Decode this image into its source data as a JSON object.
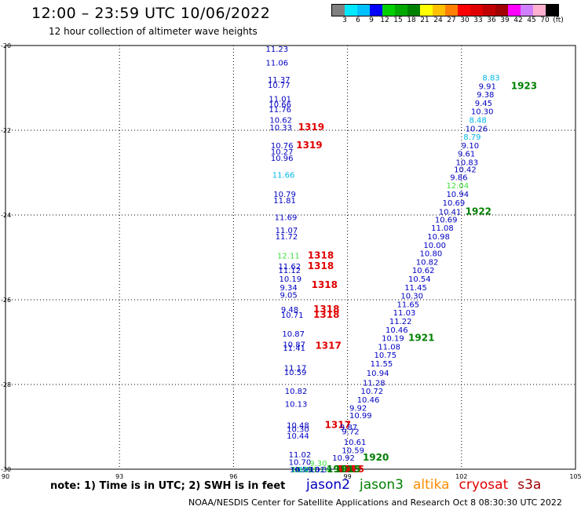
{
  "header": {
    "title": "12:00 – 23:59 UTC 10/06/2022",
    "subtitle": "12 hour collection of altimeter wave heights"
  },
  "colorbar": {
    "colors": [
      "#808080",
      "#00e8ff",
      "#00c0ff",
      "#0000ff",
      "#00d000",
      "#00a800",
      "#008000",
      "#ffff00",
      "#ffc000",
      "#ff8000",
      "#ff0000",
      "#e00000",
      "#c00000",
      "#a00000",
      "#ff00ff",
      "#d080ff",
      "#ffb0d0",
      "#000000"
    ],
    "labels": [
      "3",
      "6",
      "9",
      "12",
      "15",
      "18",
      "21",
      "24",
      "27",
      "30",
      "33",
      "36",
      "39",
      "42",
      "45",
      "70",
      "(ft)"
    ]
  },
  "axes": {
    "x_ticks": [
      "90",
      "93",
      "96",
      "99",
      "102",
      "105"
    ],
    "y_ticks": [
      "-20",
      "-22",
      "-24",
      "-26",
      "-28",
      "-30"
    ],
    "xlim": [
      90,
      105
    ],
    "ylim": [
      -30,
      -20
    ]
  },
  "chart_data": {
    "type": "scatter",
    "point_labels": [
      {
        "x": 96.85,
        "y": -20.07,
        "text": "11.23",
        "color": "#0000c0"
      },
      {
        "x": 96.85,
        "y": -20.4,
        "text": "11.06",
        "color": "#0000c0"
      },
      {
        "x": 96.9,
        "y": -20.8,
        "text": "11.37",
        "color": "#0000c0"
      },
      {
        "x": 96.9,
        "y": -20.93,
        "text": "10.77",
        "color": "#0000c0"
      },
      {
        "x": 96.93,
        "y": -21.25,
        "text": "11.01",
        "color": "#0000c0"
      },
      {
        "x": 96.93,
        "y": -21.38,
        "text": "10.66",
        "color": "#0000c0"
      },
      {
        "x": 96.93,
        "y": -21.5,
        "text": "11.76",
        "color": "#0000c0"
      },
      {
        "x": 96.95,
        "y": -21.75,
        "text": "10.62",
        "color": "#0000c0"
      },
      {
        "x": 96.95,
        "y": -21.93,
        "text": "10.33",
        "color": "#0000c0"
      },
      {
        "x": 97.7,
        "y": -21.93,
        "text": "1319",
        "color": "#e00000",
        "bold": true
      },
      {
        "x": 96.98,
        "y": -22.35,
        "text": "10.76",
        "color": "#0000c0"
      },
      {
        "x": 96.98,
        "y": -22.5,
        "text": "10.27",
        "color": "#0000c0"
      },
      {
        "x": 96.98,
        "y": -22.65,
        "text": "10.96",
        "color": "#0000c0"
      },
      {
        "x": 97.65,
        "y": -22.35,
        "text": "1319",
        "color": "#e00000",
        "bold": true
      },
      {
        "x": 97.02,
        "y": -23.05,
        "text": "11.66",
        "color": "#00b8e8"
      },
      {
        "x": 97.05,
        "y": -23.5,
        "text": "10.79",
        "color": "#0000c0"
      },
      {
        "x": 97.05,
        "y": -23.65,
        "text": "11.81",
        "color": "#0000c0"
      },
      {
        "x": 97.08,
        "y": -24.05,
        "text": "11.69",
        "color": "#0000c0"
      },
      {
        "x": 97.1,
        "y": -24.35,
        "text": "11.07",
        "color": "#0000c0"
      },
      {
        "x": 97.1,
        "y": -24.5,
        "text": "11.72",
        "color": "#0000c0"
      },
      {
        "x": 97.15,
        "y": -24.95,
        "text": "12.11",
        "color": "#40e040"
      },
      {
        "x": 97.95,
        "y": -24.95,
        "text": "1318",
        "color": "#e00000",
        "bold": true
      },
      {
        "x": 97.18,
        "y": -25.2,
        "text": "11.62",
        "color": "#0000c0"
      },
      {
        "x": 97.18,
        "y": -25.3,
        "text": "11.12",
        "color": "#0000c0"
      },
      {
        "x": 97.95,
        "y": -25.2,
        "text": "1318",
        "color": "#e00000",
        "bold": true
      },
      {
        "x": 97.2,
        "y": -25.5,
        "text": "10.19",
        "color": "#0000c0"
      },
      {
        "x": 97.22,
        "y": -25.7,
        "text": "9.34",
        "color": "#0000c0"
      },
      {
        "x": 98.05,
        "y": -25.65,
        "text": "1318",
        "color": "#e00000",
        "bold": true
      },
      {
        "x": 97.22,
        "y": -25.88,
        "text": "9.05",
        "color": "#0000c0"
      },
      {
        "x": 97.25,
        "y": -26.22,
        "text": "9.48",
        "color": "#0000c0"
      },
      {
        "x": 97.25,
        "y": -26.35,
        "text": "10.71",
        "color": "#0000c0"
      },
      {
        "x": 98.1,
        "y": -26.22,
        "text": "1318",
        "color": "#e00000",
        "bold": true
      },
      {
        "x": 98.1,
        "y": -26.35,
        "text": "1318",
        "color": "#e00000",
        "bold": true
      },
      {
        "x": 97.28,
        "y": -26.8,
        "text": "10.87",
        "color": "#0000c0"
      },
      {
        "x": 97.3,
        "y": -27.05,
        "text": "10.87",
        "color": "#0000c0"
      },
      {
        "x": 97.3,
        "y": -27.13,
        "text": "11.41",
        "color": "#0000c0"
      },
      {
        "x": 98.15,
        "y": -27.08,
        "text": "1317",
        "color": "#e00000",
        "bold": true
      },
      {
        "x": 97.33,
        "y": -27.6,
        "text": "11.17",
        "color": "#0000c0"
      },
      {
        "x": 97.33,
        "y": -27.7,
        "text": "10.59",
        "color": "#0000c0"
      },
      {
        "x": 97.35,
        "y": -28.15,
        "text": "10.82",
        "color": "#0000c0"
      },
      {
        "x": 97.35,
        "y": -28.45,
        "text": "10.13",
        "color": "#0000c0"
      },
      {
        "x": 97.4,
        "y": -28.95,
        "text": "10.48",
        "color": "#0000c0"
      },
      {
        "x": 97.4,
        "y": -29.05,
        "text": "10.30",
        "color": "#0000c0"
      },
      {
        "x": 97.4,
        "y": -29.2,
        "text": "10.44",
        "color": "#0000c0"
      },
      {
        "x": 98.4,
        "y": -28.95,
        "text": "1317",
        "color": "#e00000",
        "bold": true
      },
      {
        "x": 97.45,
        "y": -29.65,
        "text": "11.02",
        "color": "#0000c0"
      },
      {
        "x": 97.45,
        "y": -29.82,
        "text": "10.70",
        "color": "#0000c0"
      },
      {
        "x": 97.48,
        "y": -30.0,
        "text": "10.51",
        "color": "#0000c0"
      },
      {
        "x": 97.5,
        "y": -30.2,
        "text": "11.03",
        "color": "#0000c0"
      },
      {
        "x": 97.5,
        "y": -30.3,
        "text": "10.53",
        "color": "#0000c0"
      },
      {
        "x": 97.5,
        "y": -30.85,
        "text": "7.89",
        "color": "#00b8e8"
      },
      {
        "x": 97.52,
        "y": -30.95,
        "text": "11.81",
        "color": "#0000c0"
      },
      {
        "x": 97.52,
        "y": -31.02,
        "text": "10.09",
        "color": "#40e040"
      },
      {
        "x": 98.0,
        "y": -29.85,
        "text": "9.30",
        "color": "#40e040"
      },
      {
        "x": 98.0,
        "y": -30.08,
        "text": "10.39",
        "color": "#0000c0"
      },
      {
        "x": 97.95,
        "y": -30.25,
        "text": "11.24",
        "color": "#40e040"
      },
      {
        "x": 97.95,
        "y": -30.42,
        "text": "9.01",
        "color": "#0000c0"
      },
      {
        "x": 98.7,
        "y": -30.22,
        "text": "1317",
        "color": "#e00000",
        "bold": true
      },
      {
        "x": 98.7,
        "y": -30.35,
        "text": "1317",
        "color": "#e00000",
        "bold": true
      },
      {
        "x": 98.45,
        "y": -30.95,
        "text": "1915",
        "color": "#008000",
        "bold": true
      },
      {
        "x": 98.75,
        "y": -30.95,
        "text": "1316",
        "color": "#e00000",
        "bold": true
      },
      {
        "x": 98.65,
        "y": -31.0,
        "text": "1915",
        "color": "#008000",
        "bold": true
      },
      {
        "x": 98.8,
        "y": -29.0,
        "text": "9.87",
        "color": "#0000c0"
      },
      {
        "x": 98.85,
        "y": -29.1,
        "text": "9.72",
        "color": "#0000c0"
      },
      {
        "x": 98.9,
        "y": -29.35,
        "text": "10.61",
        "color": "#0000c0"
      },
      {
        "x": 98.85,
        "y": -29.55,
        "text": "10.59",
        "color": "#0000c0"
      },
      {
        "x": 98.6,
        "y": -29.72,
        "text": "10.92",
        "color": "#0000c0"
      },
      {
        "x": 99.4,
        "y": -29.72,
        "text": "1920",
        "color": "#008000",
        "bold": true
      },
      {
        "x": 99.05,
        "y": -28.72,
        "text": "10.99",
        "color": "#0000c0"
      },
      {
        "x": 99.05,
        "y": -28.55,
        "text": "9.92",
        "color": "#0000c0"
      },
      {
        "x": 99.25,
        "y": -28.35,
        "text": "10.46",
        "color": "#0000c0"
      },
      {
        "x": 99.35,
        "y": -28.15,
        "text": "10.72",
        "color": "#0000c0"
      },
      {
        "x": 99.4,
        "y": -27.95,
        "text": "11.28",
        "color": "#0000c0"
      },
      {
        "x": 99.5,
        "y": -27.72,
        "text": "10.94",
        "color": "#0000c0"
      },
      {
        "x": 99.6,
        "y": -27.5,
        "text": "11.55",
        "color": "#0000c0"
      },
      {
        "x": 99.7,
        "y": -27.3,
        "text": "10.75",
        "color": "#0000c0"
      },
      {
        "x": 99.8,
        "y": -27.1,
        "text": "11.08",
        "color": "#0000c0"
      },
      {
        "x": 99.9,
        "y": -26.9,
        "text": "10.19",
        "color": "#0000c0"
      },
      {
        "x": 100.6,
        "y": -26.9,
        "text": "1921",
        "color": "#008000",
        "bold": true
      },
      {
        "x": 100.0,
        "y": -26.7,
        "text": "10.46",
        "color": "#0000c0"
      },
      {
        "x": 100.1,
        "y": -26.5,
        "text": "11.22",
        "color": "#0000c0"
      },
      {
        "x": 100.2,
        "y": -26.3,
        "text": "11.03",
        "color": "#0000c0"
      },
      {
        "x": 100.3,
        "y": -26.1,
        "text": "11.65",
        "color": "#0000c0"
      },
      {
        "x": 100.4,
        "y": -25.9,
        "text": "10.30",
        "color": "#0000c0"
      },
      {
        "x": 100.5,
        "y": -25.7,
        "text": "11.45",
        "color": "#0000c0"
      },
      {
        "x": 100.6,
        "y": -25.5,
        "text": "10.54",
        "color": "#0000c0"
      },
      {
        "x": 100.7,
        "y": -25.3,
        "text": "10.62",
        "color": "#0000c0"
      },
      {
        "x": 100.8,
        "y": -25.1,
        "text": "10.82",
        "color": "#0000c0"
      },
      {
        "x": 100.9,
        "y": -24.9,
        "text": "10.80",
        "color": "#0000c0"
      },
      {
        "x": 101.0,
        "y": -24.7,
        "text": "10.00",
        "color": "#0000c0"
      },
      {
        "x": 101.1,
        "y": -24.5,
        "text": "10.98",
        "color": "#0000c0"
      },
      {
        "x": 101.2,
        "y": -24.3,
        "text": "11.08",
        "color": "#0000c0"
      },
      {
        "x": 101.3,
        "y": -24.1,
        "text": "10.69",
        "color": "#0000c0"
      },
      {
        "x": 101.4,
        "y": -23.92,
        "text": "10.41",
        "color": "#0000c0"
      },
      {
        "x": 102.1,
        "y": -23.92,
        "text": "1922",
        "color": "#008000",
        "bold": true
      },
      {
        "x": 101.5,
        "y": -23.7,
        "text": "10.69",
        "color": "#0000c0"
      },
      {
        "x": 101.6,
        "y": -23.5,
        "text": "10.94",
        "color": "#0000c0"
      },
      {
        "x": 101.6,
        "y": -23.3,
        "text": "12.04",
        "color": "#40e040"
      },
      {
        "x": 101.7,
        "y": -23.1,
        "text": "9.86",
        "color": "#0000c0"
      },
      {
        "x": 101.8,
        "y": -22.92,
        "text": "10.42",
        "color": "#0000c0"
      },
      {
        "x": 101.85,
        "y": -22.75,
        "text": "10.83",
        "color": "#0000c0"
      },
      {
        "x": 101.9,
        "y": -22.55,
        "text": "9.61",
        "color": "#0000c0"
      },
      {
        "x": 102.0,
        "y": -22.35,
        "text": "9.10",
        "color": "#0000c0"
      },
      {
        "x": 102.05,
        "y": -22.15,
        "text": "8.79",
        "color": "#00b8e8"
      },
      {
        "x": 102.1,
        "y": -21.95,
        "text": "10.26",
        "color": "#0000c0"
      },
      {
        "x": 102.2,
        "y": -21.75,
        "text": "8.48",
        "color": "#00b8e8"
      },
      {
        "x": 102.25,
        "y": -21.55,
        "text": "10.30",
        "color": "#0000c0"
      },
      {
        "x": 102.35,
        "y": -21.35,
        "text": "9.45",
        "color": "#0000c0"
      },
      {
        "x": 102.4,
        "y": -21.15,
        "text": "9.38",
        "color": "#0000c0"
      },
      {
        "x": 102.45,
        "y": -20.95,
        "text": "9.91",
        "color": "#0000c0"
      },
      {
        "x": 102.55,
        "y": -20.75,
        "text": "8.83",
        "color": "#00b8e8"
      },
      {
        "x": 103.3,
        "y": -20.95,
        "text": "1923",
        "color": "#008000",
        "bold": true
      }
    ]
  },
  "footer": {
    "note": "note: 1) Time is in UTC; 2) SWH is in feet",
    "credit": "NOAA/NESDIS Center for Satellite Applications and Research   Oct  8 08:30:30 UTC 2022",
    "missions": [
      {
        "name": "jason2",
        "color": "#0000c0"
      },
      {
        "name": "jason3",
        "color": "#008000"
      },
      {
        "name": "altika",
        "color": "#ff8c00"
      },
      {
        "name": "cryosat",
        "color": "#e00000"
      },
      {
        "name": "s3a",
        "color": "#a00000"
      }
    ]
  }
}
